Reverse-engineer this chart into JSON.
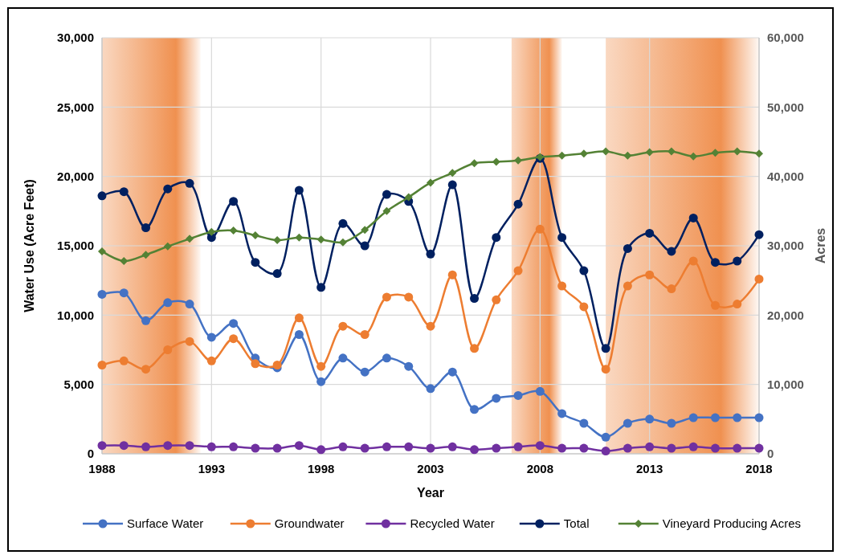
{
  "chart_data": {
    "type": "line",
    "xlabel": "Year",
    "ylabel": "Water Use (Acre Feet)",
    "y2label": "Acres",
    "x": [
      1988,
      1989,
      1990,
      1991,
      1992,
      1993,
      1994,
      1995,
      1996,
      1997,
      1998,
      1999,
      2000,
      2001,
      2002,
      2003,
      2004,
      2005,
      2006,
      2007,
      2008,
      2009,
      2010,
      2011,
      2012,
      2013,
      2014,
      2015,
      2016,
      2017,
      2018
    ],
    "series": [
      {
        "name": "Surface Water",
        "color": "#4472c4",
        "marker": "circle",
        "values": [
          11500,
          11600,
          9600,
          10900,
          10800,
          8400,
          9400,
          6900,
          6200,
          8600,
          5200,
          6900,
          5900,
          6900,
          6300,
          4700,
          5900,
          3200,
          4000,
          4200,
          4500,
          2900,
          2200,
          1200,
          2200,
          2500,
          2200,
          2600,
          2600,
          2600,
          2600
        ]
      },
      {
        "name": "Groundwater",
        "color": "#ed7d31",
        "marker": "circle",
        "values": [
          6400,
          6700,
          6100,
          7500,
          8100,
          6700,
          8300,
          6500,
          6400,
          9800,
          6300,
          9200,
          8600,
          11300,
          11300,
          9200,
          12900,
          7600,
          11100,
          13200,
          16200,
          12100,
          10600,
          6100,
          12100,
          12900,
          11900,
          13900,
          10700,
          10800,
          12600
        ]
      },
      {
        "name": "Recycled Water",
        "color": "#7030a0",
        "marker": "circle",
        "values": [
          600,
          600,
          500,
          600,
          600,
          500,
          500,
          400,
          400,
          600,
          300,
          500,
          400,
          500,
          500,
          400,
          500,
          300,
          400,
          500,
          600,
          400,
          400,
          200,
          400,
          500,
          400,
          500,
          400,
          400,
          400
        ]
      },
      {
        "name": "Total",
        "color": "#002060",
        "marker": "circle",
        "values": [
          18600,
          18900,
          16300,
          19100,
          19500,
          15600,
          18200,
          13800,
          13000,
          19000,
          12000,
          16600,
          15000,
          18700,
          18200,
          14400,
          19400,
          11200,
          15600,
          18000,
          21300,
          15600,
          13200,
          7600,
          14800,
          15900,
          14600,
          17000,
          13800,
          13900,
          15800
        ]
      },
      {
        "name": "Vineyard Producing Acres",
        "color": "#548235",
        "marker": "diamond",
        "axis": "y2",
        "values": [
          29200,
          27800,
          28700,
          29900,
          31000,
          32000,
          32200,
          31500,
          30800,
          31200,
          30900,
          30500,
          32300,
          35000,
          37000,
          39100,
          40500,
          41900,
          42100,
          42300,
          42800,
          43000,
          43300,
          43600,
          43000,
          43500,
          43600,
          42900,
          43400,
          43600,
          43300
        ]
      }
    ],
    "xlim": [
      1988,
      2018
    ],
    "xticks": [
      1988,
      1993,
      1998,
      2003,
      2008,
      2013,
      2018
    ],
    "ylim": [
      0,
      30000
    ],
    "yticks": [
      {
        "value": 0,
        "label": "0"
      },
      {
        "value": 5000,
        "label": "5,000"
      },
      {
        "value": 10000,
        "label": "10,000"
      },
      {
        "value": 15000,
        "label": "15,000"
      },
      {
        "value": 20000,
        "label": "20,000"
      },
      {
        "value": 25000,
        "label": "25,000"
      },
      {
        "value": 30000,
        "label": "30,000"
      }
    ],
    "y2lim": [
      0,
      60000
    ],
    "y2ticks": [
      {
        "value": 0,
        "label": "0"
      },
      {
        "value": 10000,
        "label": "10,000"
      },
      {
        "value": 20000,
        "label": "20,000"
      },
      {
        "value": 30000,
        "label": "30,000"
      },
      {
        "value": 40000,
        "label": "40,000"
      },
      {
        "value": 50000,
        "label": "50,000"
      },
      {
        "value": 60000,
        "label": "60,000"
      }
    ],
    "bands": [
      {
        "axis": "x",
        "from": 1988,
        "to": 1992.5,
        "color": "#ed7d31"
      },
      {
        "axis": "x",
        "from": 2006.7,
        "to": 2009,
        "color": "#ed7d31"
      },
      {
        "axis": "x",
        "from": 2011,
        "to": 2018,
        "color": "#ed7d31"
      }
    ],
    "grid": true,
    "legend": "bottom",
    "line_style": "solid"
  }
}
